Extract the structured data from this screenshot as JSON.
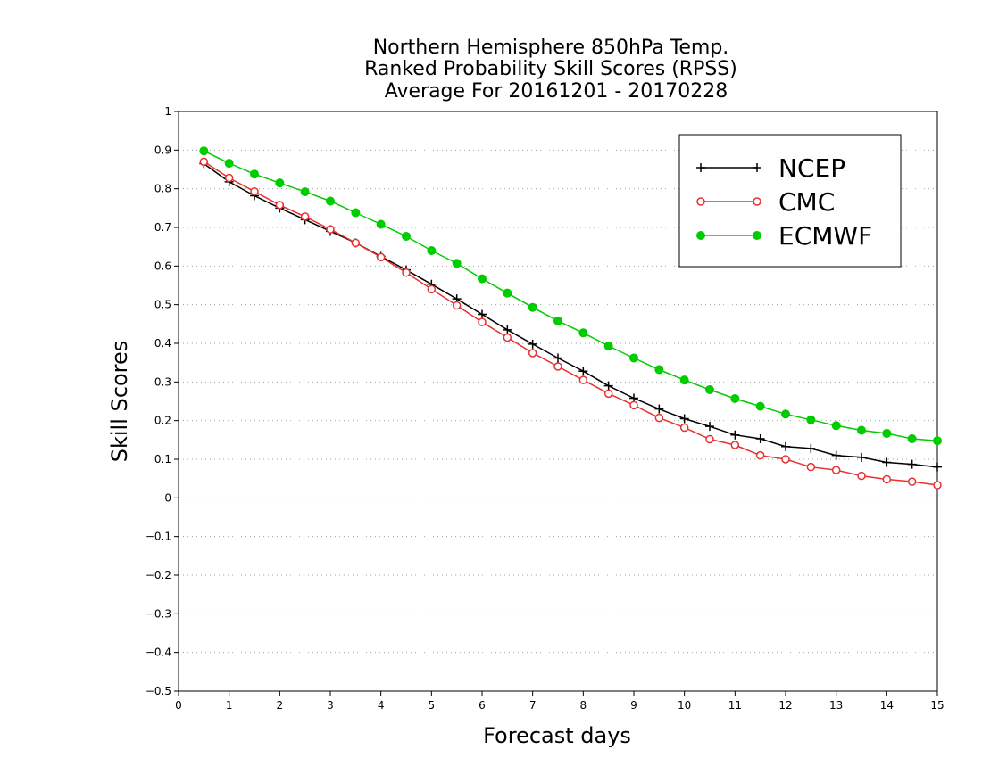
{
  "chart_data": {
    "type": "line",
    "title": [
      "Northern Hemisphere 850hPa Temp.",
      "Ranked Probability Skill Scores (RPSS)",
      "Average For 20161201 - 20170228"
    ],
    "xlabel": "Forecast days",
    "ylabel": "Skill Scores",
    "xlim": [
      0,
      15
    ],
    "ylim": [
      -0.5,
      1
    ],
    "xticks": [
      "0",
      "1",
      "2",
      "3",
      "4",
      "5",
      "6",
      "7",
      "8",
      "9",
      "10",
      "11",
      "12",
      "13",
      "14",
      "15"
    ],
    "yticks": [
      "−0.5",
      "−0.4",
      "−0.3",
      "−0.2",
      "−0.1",
      "0",
      "0.1",
      "0.2",
      "0.3",
      "0.4",
      "0.5",
      "0.6",
      "0.7",
      "0.8",
      "0.9",
      "1"
    ],
    "ytick_values": [
      -0.5,
      -0.4,
      -0.3,
      -0.2,
      -0.1,
      0,
      0.1,
      0.2,
      0.3,
      0.4,
      0.5,
      0.6,
      0.7,
      0.8,
      0.9,
      1
    ],
    "grid": true,
    "legend_position": "top-right",
    "x": [
      0.5,
      1,
      1.5,
      2,
      2.5,
      3,
      3.5,
      4,
      4.5,
      5,
      5.5,
      6,
      6.5,
      7,
      7.5,
      8,
      8.5,
      9,
      9.5,
      10,
      10.5,
      11,
      11.5,
      12,
      12.5,
      13,
      13.5,
      14,
      14.5,
      15
    ],
    "series": [
      {
        "name": "NCEP",
        "color": "#000000",
        "marker": "plus",
        "values": [
          0.865,
          0.818,
          0.782,
          0.75,
          0.72,
          0.69,
          0.66,
          0.625,
          0.59,
          0.553,
          0.515,
          0.475,
          0.435,
          0.398,
          0.362,
          0.328,
          0.29,
          0.258,
          0.23,
          0.205,
          0.185,
          0.163,
          0.153,
          0.133,
          0.128,
          0.11,
          0.105,
          0.092,
          0.087,
          0.08
        ]
      },
      {
        "name": "CMC",
        "color": "#e83030",
        "marker": "open-circle",
        "values": [
          0.87,
          0.828,
          0.793,
          0.758,
          0.728,
          0.695,
          0.66,
          0.623,
          0.583,
          0.54,
          0.498,
          0.455,
          0.415,
          0.375,
          0.34,
          0.305,
          0.27,
          0.24,
          0.207,
          0.182,
          0.152,
          0.137,
          0.11,
          0.1,
          0.08,
          0.072,
          0.057,
          0.048,
          0.042,
          0.033
        ]
      },
      {
        "name": "ECMWF",
        "color": "#00cc00",
        "marker": "filled-circle",
        "values": [
          0.898,
          0.866,
          0.838,
          0.815,
          0.792,
          0.768,
          0.738,
          0.708,
          0.677,
          0.64,
          0.607,
          0.567,
          0.53,
          0.493,
          0.458,
          0.427,
          0.393,
          0.362,
          0.332,
          0.305,
          0.28,
          0.257,
          0.237,
          0.217,
          0.202,
          0.187,
          0.175,
          0.167,
          0.153,
          0.148
        ]
      }
    ]
  }
}
